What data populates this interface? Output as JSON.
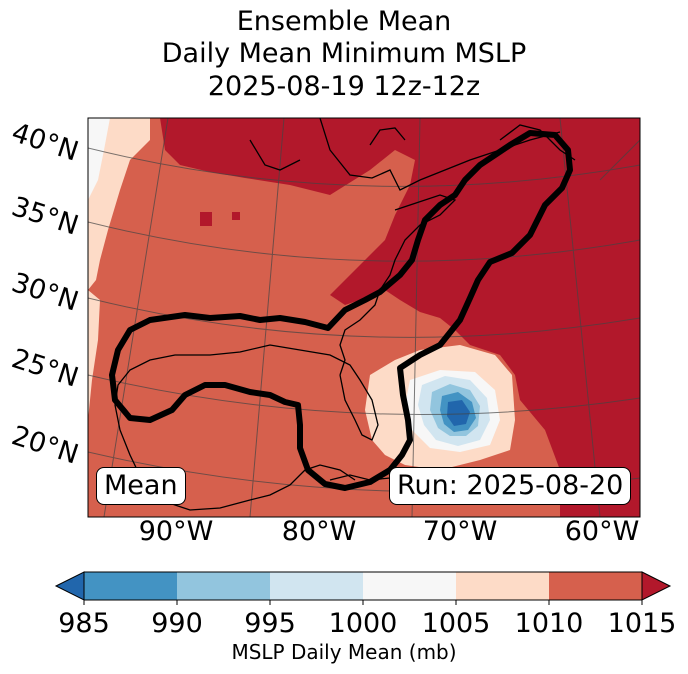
{
  "title": {
    "line1": "Ensemble Mean",
    "line2": "Daily Mean Minimum MSLP",
    "line3": "2025-08-19 12z-12z"
  },
  "map": {
    "lat_labels": [
      "40°N",
      "35°N",
      "30°N",
      "25°N",
      "20°N"
    ],
    "lon_labels": [
      "90°W",
      "80°W",
      "70°W",
      "60°W"
    ],
    "mean_box": "Mean",
    "run_box": "Run: 2025-08-20",
    "colors": {
      "c985": "#2166ac",
      "c990": "#4393c3",
      "c995": "#92c5de",
      "c1000": "#d1e5f0",
      "c1005": "#f7f7f7",
      "c1010": "#fddbc7",
      "c1015": "#d6604d",
      "c1020": "#b2182b"
    }
  },
  "colorbar": {
    "ticks": [
      "985",
      "990",
      "995",
      "1000",
      "1005",
      "1010",
      "1015"
    ],
    "label": "MSLP Daily Mean (mb)",
    "segment_colors": [
      "#4393c3",
      "#92c5de",
      "#d1e5f0",
      "#f7f7f7",
      "#fddbc7",
      "#d6604d"
    ],
    "under_color": "#2166ac",
    "over_color": "#b2182b"
  }
}
